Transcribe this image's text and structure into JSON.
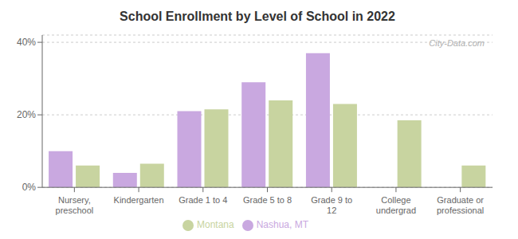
{
  "chart_data": {
    "type": "bar",
    "title": "School Enrollment by Level of School in 2022",
    "categories": [
      "Nursery,\npreschool",
      "Kindergarten",
      "Grade 1 to 4",
      "Grade 5 to 8",
      "Grade 9 to\n12",
      "College\nundergrad",
      "Graduate or\nprofessional"
    ],
    "series": [
      {
        "name": "Nashua, MT",
        "color": "#c9a8e0",
        "values": [
          10.0,
          4.0,
          21.0,
          29.0,
          37.0,
          0.0,
          0.0
        ]
      },
      {
        "name": "Montana",
        "color": "#c8d4a0",
        "values": [
          6.0,
          6.5,
          21.5,
          24.0,
          23.0,
          18.5,
          6.0
        ]
      }
    ],
    "ylim": [
      0,
      42
    ],
    "yticks": [
      {
        "value": 0,
        "label": "0%"
      },
      {
        "value": 20,
        "label": "20%"
      },
      {
        "value": 40,
        "label": "40%"
      }
    ],
    "grid": true,
    "legend": "bottom",
    "annotations": [
      "City-Data.com"
    ]
  }
}
